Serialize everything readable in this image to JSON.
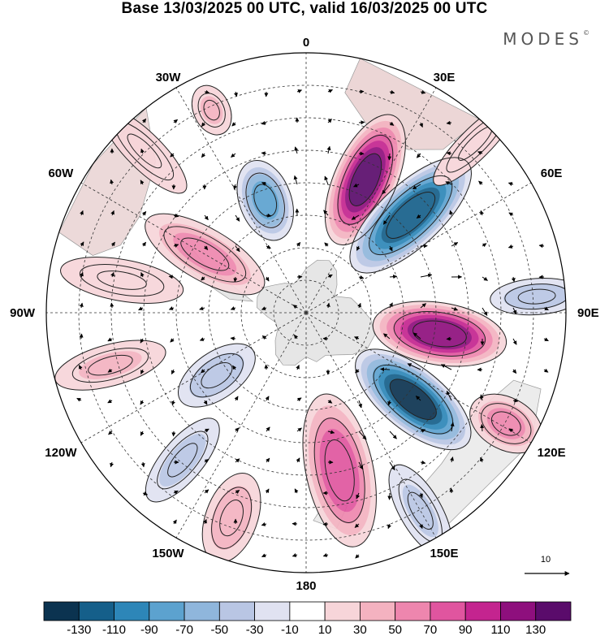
{
  "title": "Base 13/03/2025 00 UTC, valid 16/03/2025 00 UTC",
  "brand": "MODES",
  "brand_mark": "©",
  "longitude_labels": [
    {
      "lon": 0,
      "text": "0"
    },
    {
      "lon": 30,
      "text": "30E"
    },
    {
      "lon": 60,
      "text": "60E"
    },
    {
      "lon": 90,
      "text": "90E"
    },
    {
      "lon": 120,
      "text": "120E"
    },
    {
      "lon": 150,
      "text": "150E"
    },
    {
      "lon": 180,
      "text": "180"
    },
    {
      "lon": -150,
      "text": "150W"
    },
    {
      "lon": -120,
      "text": "120W"
    },
    {
      "lon": -90,
      "text": "90W"
    },
    {
      "lon": -60,
      "text": "60W"
    },
    {
      "lon": -30,
      "text": "30W"
    }
  ],
  "vector_reference": {
    "value": "10"
  },
  "colorbar": {
    "colors": [
      "#0b3350",
      "#155f8a",
      "#2d86b8",
      "#5ca2cf",
      "#8fb6dc",
      "#b9c6e4",
      "#e0e2f1",
      "#ffffff",
      "#f7d5d9",
      "#f4b2c0",
      "#ee86ae",
      "#e0559f",
      "#c4248f",
      "#8e0f7d",
      "#5a0b6b"
    ],
    "ticks": [
      "-130",
      "-110",
      "-90",
      "-70",
      "-50",
      "-30",
      "-10",
      "10",
      "30",
      "50",
      "70",
      "90",
      "110",
      "130"
    ]
  },
  "anomaly_features": [
    {
      "lon": 24,
      "colat": 0.56,
      "value": 130,
      "rx": 0.27,
      "ry": 0.12
    },
    {
      "lon": 47,
      "colat": 0.55,
      "value": -125,
      "rx": 0.3,
      "ry": 0.12
    },
    {
      "lon": 99,
      "colat": 0.52,
      "value": 125,
      "rx": 0.26,
      "ry": 0.12
    },
    {
      "lon": 129,
      "colat": 0.53,
      "value": -130,
      "rx": 0.27,
      "ry": 0.12
    },
    {
      "lon": 168,
      "colat": 0.62,
      "value": 85,
      "rx": 0.3,
      "ry": 0.13
    },
    {
      "lon": -160,
      "colat": 0.84,
      "value": 45,
      "rx": 0.18,
      "ry": 0.1
    },
    {
      "lon": -125,
      "colat": 0.42,
      "value": -45,
      "rx": 0.17,
      "ry": 0.09
    },
    {
      "lon": -60,
      "colat": 0.45,
      "value": 55,
      "rx": 0.26,
      "ry": 0.1
    },
    {
      "lon": -20,
      "colat": 0.46,
      "value": -75,
      "rx": 0.16,
      "ry": 0.1
    },
    {
      "lon": -25,
      "colat": 0.86,
      "value": 30,
      "rx": 0.1,
      "ry": 0.07
    },
    {
      "lon": 86,
      "colat": 0.89,
      "value": -45,
      "rx": 0.18,
      "ry": 0.07
    },
    {
      "lon": 119,
      "colat": 0.88,
      "value": 55,
      "rx": 0.15,
      "ry": 0.1
    },
    {
      "lon": -105,
      "colat": 0.78,
      "value": 30,
      "rx": 0.22,
      "ry": 0.08
    },
    {
      "lon": -80,
      "colat": 0.72,
      "value": 25,
      "rx": 0.24,
      "ry": 0.08
    },
    {
      "lon": -140,
      "colat": 0.74,
      "value": -35,
      "rx": 0.2,
      "ry": 0.08
    },
    {
      "lon": 150,
      "colat": 0.88,
      "value": -30,
      "rx": 0.2,
      "ry": 0.08
    },
    {
      "lon": 45,
      "colat": 0.92,
      "value": 20,
      "rx": 0.22,
      "ry": 0.06
    },
    {
      "lon": -45,
      "colat": 0.88,
      "value": 25,
      "rx": 0.22,
      "ry": 0.07
    }
  ]
}
